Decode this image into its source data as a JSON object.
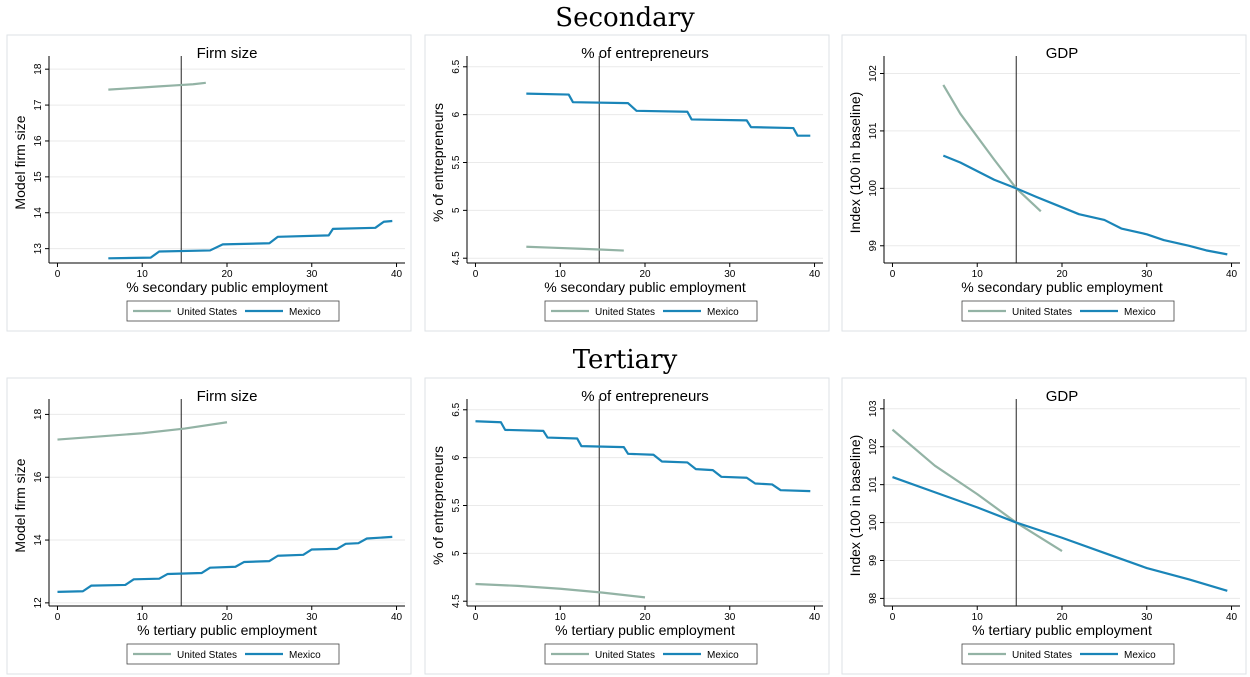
{
  "section_titles": [
    "Secondary",
    "Tertiary"
  ],
  "chart_data": [
    {
      "type": "line",
      "title": "Firm size",
      "x_label": "% secondary public employment",
      "y_label": "Model firm size",
      "xlim": [
        -1,
        41
      ],
      "xticks": [
        0,
        10,
        20,
        30,
        40
      ],
      "ylim": [
        12.6,
        18.2
      ],
      "yticks": [
        13,
        14,
        15,
        16,
        17,
        18
      ],
      "vline": 14.6,
      "grid": true,
      "legend": "bottom",
      "series": [
        {
          "name": "United States",
          "color": "#93b3a5",
          "x": [
            6,
            8,
            10,
            12,
            14,
            16,
            17.5
          ],
          "values": [
            17.43,
            17.46,
            17.49,
            17.52,
            17.55,
            17.58,
            17.62
          ]
        },
        {
          "name": "Mexico",
          "color": "#1a85b8",
          "x": [
            6,
            11,
            12,
            18,
            19.5,
            25,
            26,
            32,
            32.5,
            37.5,
            38.5,
            39.5
          ],
          "values": [
            12.73,
            12.75,
            12.92,
            12.95,
            13.12,
            13.15,
            13.33,
            13.37,
            13.55,
            13.58,
            13.75,
            13.77
          ]
        }
      ]
    },
    {
      "type": "line",
      "title": "% of entrepreneurs",
      "x_label": "% secondary public employment",
      "y_label": "% of entrepreneurs",
      "xlim": [
        -1,
        41
      ],
      "xticks": [
        0,
        10,
        20,
        30,
        40
      ],
      "ylim": [
        4.45,
        6.55
      ],
      "yticks": [
        4.5,
        5,
        5.5,
        6,
        6.5
      ],
      "vline": 14.6,
      "grid": true,
      "legend": "bottom",
      "series": [
        {
          "name": "United States",
          "color": "#93b3a5",
          "x": [
            6,
            9,
            12,
            15,
            17.5
          ],
          "values": [
            4.62,
            4.61,
            4.6,
            4.59,
            4.58
          ]
        },
        {
          "name": "Mexico",
          "color": "#1a85b8",
          "x": [
            6,
            11,
            11.5,
            18,
            19,
            25,
            25.5,
            32,
            32.5,
            37.5,
            38,
            39.5
          ],
          "values": [
            6.22,
            6.21,
            6.13,
            6.12,
            6.04,
            6.03,
            5.95,
            5.94,
            5.87,
            5.86,
            5.78,
            5.78
          ]
        }
      ]
    },
    {
      "type": "line",
      "title": "GDP",
      "x_label": "% secondary public employment",
      "y_label": "Index (100 in baseline)",
      "xlim": [
        -1,
        41
      ],
      "xticks": [
        0,
        10,
        20,
        30,
        40
      ],
      "ylim": [
        98.7,
        102.2
      ],
      "yticks": [
        99,
        100,
        101,
        102
      ],
      "vline": 14.6,
      "grid": true,
      "legend": "bottom",
      "series": [
        {
          "name": "United States",
          "color": "#93b3a5",
          "x": [
            6,
            8,
            9.5,
            12,
            14.6,
            17.5
          ],
          "values": [
            101.8,
            101.3,
            101,
            100.5,
            100,
            99.6
          ]
        },
        {
          "name": "Mexico",
          "color": "#1a85b8",
          "x": [
            6,
            8,
            10,
            12,
            14.6,
            17,
            19.5,
            22,
            25,
            27,
            30,
            32,
            35,
            37,
            39.5
          ],
          "values": [
            100.57,
            100.45,
            100.3,
            100.15,
            100,
            99.85,
            99.7,
            99.55,
            99.45,
            99.3,
            99.2,
            99.1,
            99,
            98.92,
            98.85
          ]
        }
      ]
    },
    {
      "type": "line",
      "title": "Firm size",
      "x_label": "% tertiary public employment",
      "y_label": "Model firm size",
      "xlim": [
        -1,
        41
      ],
      "xticks": [
        0,
        10,
        20,
        30,
        40
      ],
      "ylim": [
        11.9,
        18.3
      ],
      "yticks": [
        12,
        14,
        16,
        18
      ],
      "vline": 14.6,
      "grid": true,
      "legend": "bottom",
      "series": [
        {
          "name": "United States",
          "color": "#93b3a5",
          "x": [
            0,
            5,
            10,
            15,
            20
          ],
          "values": [
            17.2,
            17.3,
            17.4,
            17.55,
            17.75
          ]
        },
        {
          "name": "Mexico",
          "color": "#1a85b8",
          "x": [
            0,
            3,
            4,
            8,
            9,
            12,
            13,
            17,
            18,
            21,
            22,
            25,
            26,
            29,
            30,
            33,
            34,
            35.5,
            36.5,
            39.5
          ],
          "values": [
            12.35,
            12.37,
            12.55,
            12.57,
            12.75,
            12.77,
            12.92,
            12.95,
            13.12,
            13.15,
            13.3,
            13.33,
            13.5,
            13.53,
            13.7,
            13.72,
            13.88,
            13.9,
            14.05,
            14.1
          ]
        }
      ]
    },
    {
      "type": "line",
      "title": "% of entrepreneurs",
      "x_label": "% tertiary public employment",
      "y_label": "% of entrepreneurs",
      "xlim": [
        -1,
        41
      ],
      "xticks": [
        0,
        10,
        20,
        30,
        40
      ],
      "ylim": [
        4.45,
        6.55
      ],
      "yticks": [
        4.5,
        5,
        5.5,
        6,
        6.5
      ],
      "vline": 14.6,
      "grid": true,
      "legend": "bottom",
      "series": [
        {
          "name": "United States",
          "color": "#93b3a5",
          "x": [
            0,
            5,
            10,
            15,
            20
          ],
          "values": [
            4.68,
            4.66,
            4.63,
            4.59,
            4.54
          ]
        },
        {
          "name": "Mexico",
          "color": "#1a85b8",
          "x": [
            0,
            3,
            3.5,
            8,
            8.5,
            12,
            12.5,
            17.5,
            18,
            21,
            22,
            25,
            26,
            28,
            29,
            32,
            33,
            35,
            36,
            39.5
          ],
          "values": [
            6.38,
            6.37,
            6.29,
            6.28,
            6.21,
            6.2,
            6.12,
            6.11,
            6.04,
            6.03,
            5.96,
            5.95,
            5.88,
            5.87,
            5.8,
            5.79,
            5.73,
            5.72,
            5.66,
            5.65
          ]
        }
      ]
    },
    {
      "type": "line",
      "title": "GDP",
      "x_label": "% tertiary public employment",
      "y_label": "Index (100 in baseline)",
      "xlim": [
        -1,
        41
      ],
      "xticks": [
        0,
        10,
        20,
        30,
        40
      ],
      "ylim": [
        97.8,
        103.1
      ],
      "yticks": [
        98,
        99,
        100,
        101,
        102,
        103
      ],
      "vline": 14.6,
      "grid": true,
      "legend": "bottom",
      "series": [
        {
          "name": "United States",
          "color": "#93b3a5",
          "x": [
            0,
            5,
            10,
            14.6,
            20
          ],
          "values": [
            102.45,
            101.5,
            100.75,
            100,
            99.25
          ]
        },
        {
          "name": "Mexico",
          "color": "#1a85b8",
          "x": [
            0,
            5,
            10,
            14.6,
            20,
            25,
            30,
            35,
            39.5
          ],
          "values": [
            101.2,
            100.8,
            100.4,
            100,
            99.6,
            99.2,
            98.8,
            98.5,
            98.2
          ]
        }
      ]
    }
  ]
}
